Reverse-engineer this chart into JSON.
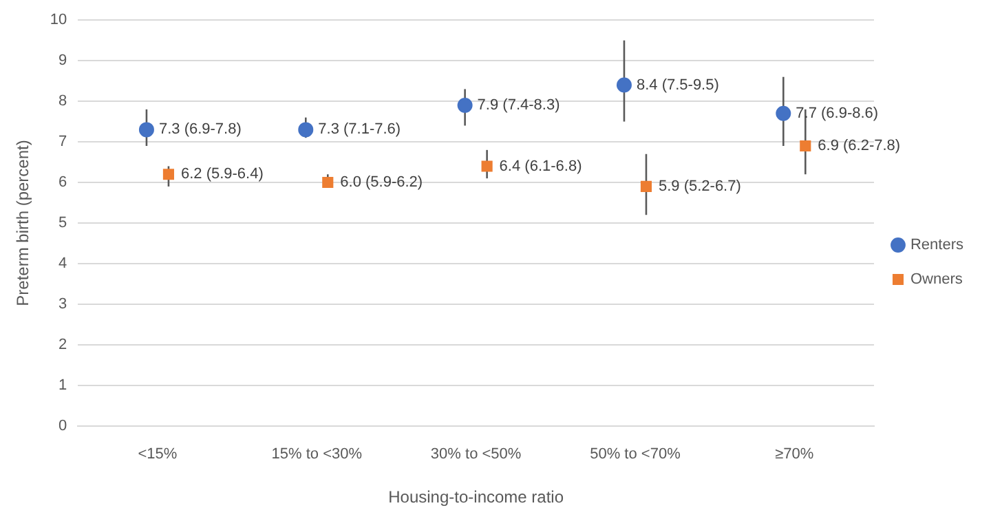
{
  "chart_data": {
    "type": "scatter",
    "xlabel": "Housing-to-income ratio",
    "ylabel": "Preterm birth (percent)",
    "categories": [
      "<15%",
      "15% to <30%",
      "30% to <50%",
      "50% to <70%",
      "≥70%"
    ],
    "ylim": [
      0,
      10
    ],
    "yticks": [
      0,
      1,
      2,
      3,
      4,
      5,
      6,
      7,
      8,
      9,
      10
    ],
    "grid": "y",
    "legend": "right",
    "series": [
      {
        "name": "Renters",
        "color": "#4472c4",
        "marker": "circle",
        "values": [
          7.3,
          7.3,
          7.9,
          8.4,
          7.7
        ],
        "errors": [
          [
            6.9,
            7.8
          ],
          [
            7.1,
            7.6
          ],
          [
            7.4,
            8.3
          ],
          [
            7.5,
            9.5
          ],
          [
            6.9,
            8.6
          ]
        ],
        "value_labels": [
          "7.3 (6.9-7.8)",
          "7.3 (7.1-7.6)",
          "7.9 (7.4-8.3)",
          "8.4 (7.5-9.5)",
          "7.7 (6.9-8.6)"
        ]
      },
      {
        "name": "Owners",
        "color": "#ed7d31",
        "marker": "square",
        "values": [
          6.2,
          6.0,
          6.4,
          5.9,
          6.9
        ],
        "errors": [
          [
            5.9,
            6.4
          ],
          [
            5.9,
            6.2
          ],
          [
            6.1,
            6.8
          ],
          [
            5.2,
            6.7
          ],
          [
            6.2,
            7.8
          ]
        ],
        "value_labels": [
          "6.2 (5.9-6.4)",
          "6.0 (5.9-6.2)",
          "6.4 (6.1-6.8)",
          "5.9 (5.2-6.7)",
          "6.9 (6.2-7.8)"
        ]
      }
    ]
  }
}
